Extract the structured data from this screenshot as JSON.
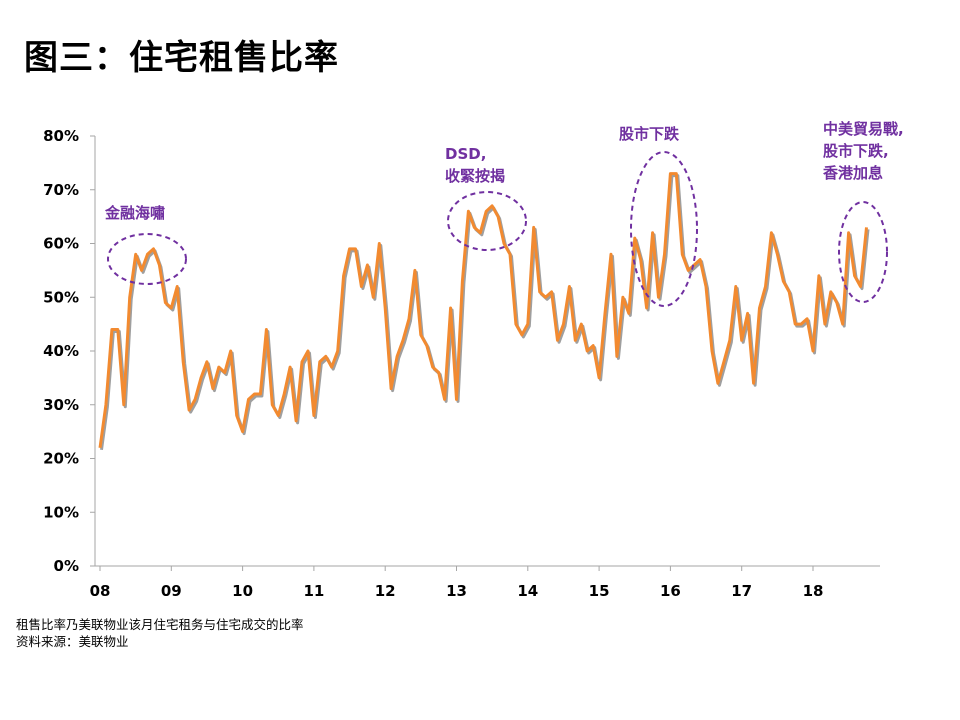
{
  "title": "图三：住宅租售比率",
  "notes": [
    "租售比率乃美联物业该月住宅租务与住宅成交的比率",
    "资料来源：美联物业"
  ],
  "colors": {
    "line": "#f28a30",
    "line_shadow": "#7f7f7f",
    "annotation": "#7030a0",
    "axis": "#a6a6a6"
  },
  "chart_data": {
    "type": "line",
    "title": "图三：住宅租售比率",
    "xlabel": "",
    "ylabel": "",
    "ylim": [
      0,
      80
    ],
    "yticks": [
      0,
      10,
      20,
      30,
      40,
      50,
      60,
      70,
      80
    ],
    "ytick_labels": [
      "0%",
      "10%",
      "20%",
      "30%",
      "40%",
      "50%",
      "60%",
      "70%",
      "80%"
    ],
    "xlim": [
      2008,
      2019
    ],
    "xticks": [
      2008,
      2009,
      2010,
      2011,
      2012,
      2013,
      2014,
      2015,
      2016,
      2017,
      2018
    ],
    "xtick_labels": [
      "08",
      "09",
      "10",
      "11",
      "12",
      "13",
      "14",
      "15",
      "16",
      "17",
      "18"
    ],
    "grid": false,
    "series": [
      {
        "name": "住宅租售比率",
        "frequency": "monthly",
        "start": "2008-01",
        "values": [
          22,
          30,
          44,
          44,
          30,
          50,
          58,
          55,
          58,
          59,
          56,
          49,
          48,
          52,
          38,
          29,
          31,
          35,
          38,
          33,
          37,
          36,
          40,
          28,
          25,
          31,
          32,
          32,
          44,
          30,
          28,
          32,
          37,
          27,
          38,
          40,
          28,
          38,
          39,
          37,
          40,
          54,
          59,
          59,
          52,
          56,
          50,
          60,
          48,
          33,
          39,
          42,
          46,
          55,
          43,
          41,
          37,
          36,
          31,
          48,
          31,
          53,
          66,
          63,
          62,
          66,
          67,
          65,
          60,
          58,
          45,
          43,
          45,
          63,
          51,
          50,
          51,
          42,
          45,
          52,
          42,
          45,
          40,
          41,
          35,
          47,
          58,
          39,
          50,
          47,
          61,
          57,
          48,
          62,
          50,
          58,
          73,
          73,
          58,
          55,
          56,
          57,
          52,
          40,
          34,
          38,
          42,
          52,
          42,
          47,
          34,
          48,
          52,
          62,
          58,
          53,
          51,
          45,
          45,
          46,
          40,
          54,
          45,
          51,
          49,
          45,
          62,
          54,
          52,
          63
        ]
      }
    ],
    "annotations": [
      {
        "lines": [
          "金融海嘯"
        ],
        "at": "2008-09"
      },
      {
        "lines": [
          "DSD,",
          "收緊按揭"
        ],
        "at": "2013-06"
      },
      {
        "lines": [
          "股市下跌"
        ],
        "at": "2016-01"
      },
      {
        "lines": [
          "中美貿易戰,",
          "股市下跌,",
          "香港加息"
        ],
        "at": "2018-09"
      }
    ]
  }
}
